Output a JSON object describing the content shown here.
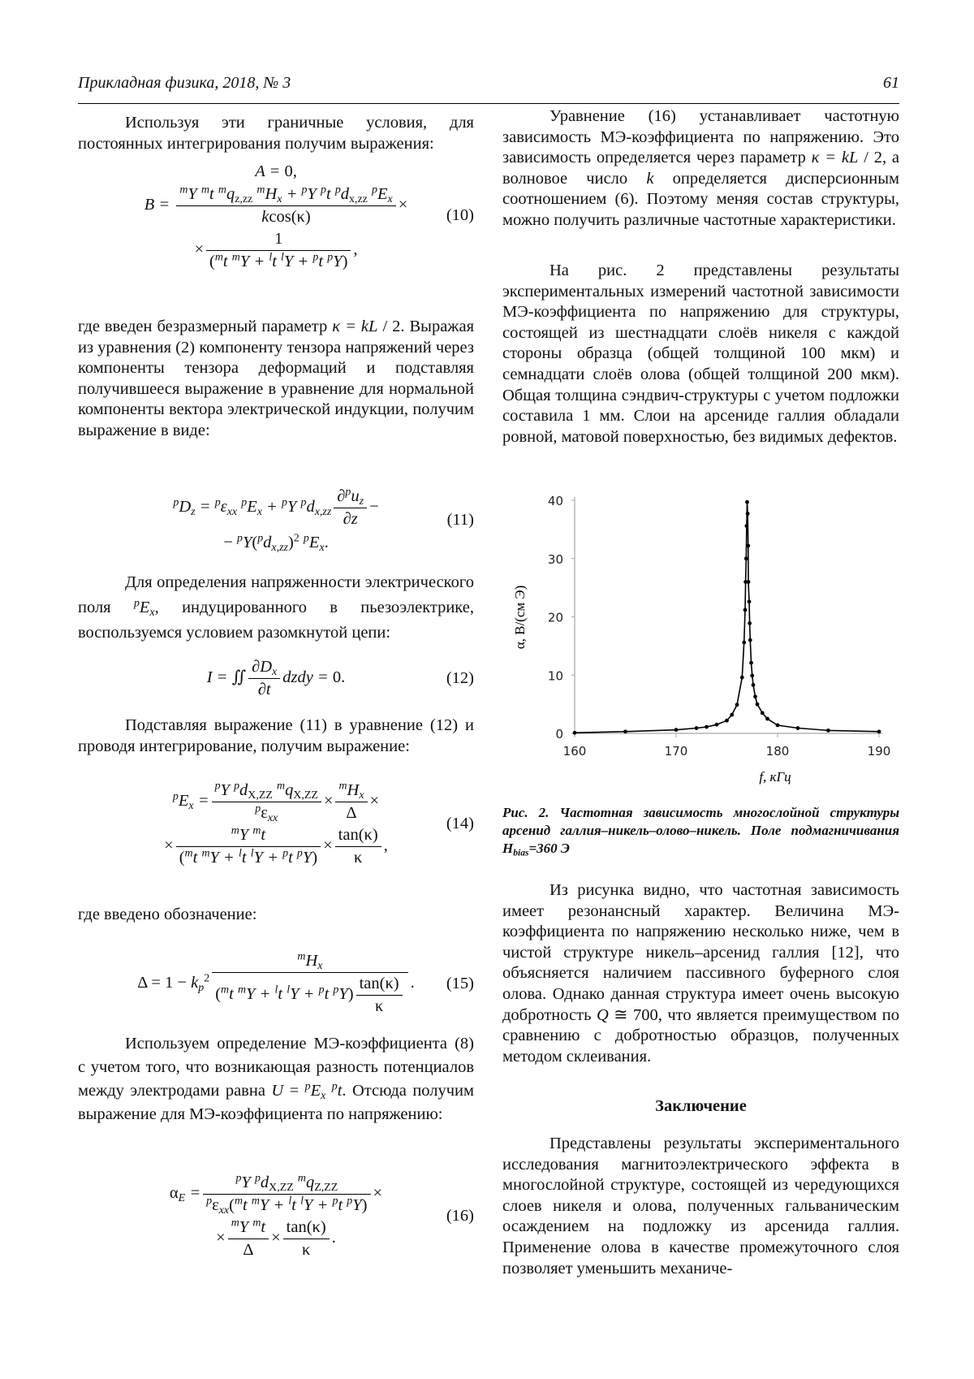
{
  "header": {
    "journal": "Прикладная физика, 2018, № 3",
    "page_number": "61"
  },
  "left": {
    "p1": "Используя эти граничные условия, для постоянных интегрирования получим выражения:",
    "eq10": {
      "label": "(10)",
      "lines": [
        [
          "A = `0`,"
        ],
        [
          "B = ",
          {
            "num": [
              "^{m}Y ^{m}t ^{m}q_{`z,zz`} ^{m}H_{x} + ^{p}Y ^{p}t ^{p}d_{`x,zz`} ^{p}E_{x}"
            ],
            "den": [
              "k`cos(κ)`"
            ]
          },
          "`×`"
        ],
        [
          "`×`",
          {
            "num": [
              "`1`"
            ],
            "den": [
              "`(`^{m}t ^{m}Y + ^{l}t ^{l}Y + ^{p}t ^{p}Y`)`"
            ]
          },
          "`,`"
        ]
      ]
    },
    "p2": "где введен безразмерный параметр *κ = kL* / 2. Выражая из уравнения (2) компоненту тензора напряжений через компоненты тензора деформаций и подставляя получившееся выражение в уравнение для нормальной компоненты вектора электрической индукции, получим выражение в виде:",
    "eq11": {
      "label": "(11)",
      "lines": [
        [
          "^{p}D_{z} = ^{p}ε_{xx} ^{p}E_{x} + ^{p}Y ^{p}d_{x,zz}",
          {
            "num": [
              "∂^{p}u_{z}"
            ],
            "den": [
              "∂z"
            ]
          },
          "`−`"
        ],
        [
          "`−` ^{p}Y`(`^{p}d_{x,zz}`)`^{`2`} ^{p}E_{x}`.`"
        ]
      ]
    },
    "p3": "Для определения напряженности электрического поля *^{p}E_{x}*, индуцированного в пьезоэлектрике, воспользуемся условием разомкнутой цепи:",
    "eq12": {
      "label": "(12)",
      "lines": [
        [
          "I = `∬`",
          {
            "num": [
              "∂D_{x}"
            ],
            "den": [
              "∂t"
            ]
          },
          "dzdy = `0.`"
        ]
      ]
    },
    "p4": "Подставляя выражение (11) в уравнение (12) и проводя интегрирование, получим выражение:",
    "eq14": {
      "label": "(14)",
      "lines": [
        [
          "^{p}E_{x} =",
          {
            "num": [
              "^{p}Y ^{p}d_{`X,ZZ`} ^{m}q_{`X,ZZ`}"
            ],
            "den": [
              "^{p}`ε`_{xx}"
            ]
          },
          "`×`",
          {
            "num": [
              "^{m}H_{x}"
            ],
            "den": [
              "`Δ`"
            ]
          },
          "`×`"
        ],
        [
          "`×`",
          {
            "num": [
              "^{m}Y ^{m}t"
            ],
            "den": [
              "`(`^{m}t ^{m}Y + ^{l}t ^{l}Y + ^{p}t ^{p}Y`)`"
            ]
          },
          "`×`",
          {
            "num": [
              "`tan(κ)`"
            ],
            "den": [
              "`κ`"
            ]
          },
          "`,`"
        ]
      ]
    },
    "p5": "где введено обозначение:",
    "eq15": {
      "label": "(15)",
      "lines": [
        [
          "`Δ = 1 −` k_{p}^{`2`}",
          {
            "num": [
              "^{m}H_{x}"
            ],
            "den": [
              "`(`^{m}t ^{m}Y + ^{l}t ^{l}Y + ^{p}t ^{p}Y`)`",
              {
                "num": [
                  "`tan(κ)`"
                ],
                "den": [
                  "`κ`"
                ]
              }
            ]
          },
          "`.`"
        ]
      ]
    },
    "p6": "Используем определение МЭ-коэффициента (8) с учетом того, что возникающая разность потенциалов между электродами равна *U* = *^{p}E_{x} ^{p}t*. Отсюда получим выражение для МЭ-коэффициента по напряжению:",
    "eq16": {
      "label": "(16)",
      "lines": [
        [
          "`α`_{E} =",
          {
            "num": [
              "^{p}Y ^{p}d_{`X,ZZ`} ^{m}q_{`Z,ZZ`}"
            ],
            "den": [
              "^{p}`ε`_{xx}`(`^{m}t ^{m}Y + ^{l}t ^{l}Y + ^{p}t ^{p}Y`)`"
            ]
          },
          "`×`"
        ],
        [
          "`×`",
          {
            "num": [
              "^{m}Y ^{m}t"
            ],
            "den": [
              "`Δ`"
            ]
          },
          "`×`",
          {
            "num": [
              "`tan(κ)`"
            ],
            "den": [
              "`κ`"
            ]
          },
          "`.`"
        ]
      ]
    }
  },
  "right": {
    "p1": "Уравнение (16) устанавливает частотную зависимость МЭ-коэффициента по напряжению. Это зависимость определяется через параметр *κ = kL* / 2, а волновое число *k* определяется дисперсионным соотношением (6). Поэтому меняя состав структуры, можно получить различные частотные характеристики.",
    "p2": "На рис. 2 представлены результаты экспериментальных измерений частотной зависимости МЭ-коэффициента по напряжению для структуры, состоящей из шестнадцати слоёв никеля с каждой стороны образца (общей толщиной 100 мкм) и семнадцати слоёв олова (общей толщиной 200 мкм). Общая толщина сэндвич-структуры с учетом подложки составила 1 мм. Слои на арсениде галлия обладали ровной, матовой поверхностью, без видимых дефектов.",
    "caption": "Рис. 2. Частотная зависимость многослойной структуры арсенид галлия–никель–олово–никель. Поле подмагничивания H_{bias}=360 Э",
    "p3": "Из рисунка видно, что частотная зависимость имеет резонансный характер. Величина МЭ-коэффициента по напряжению несколько ниже, чем в чистой структуре никель–арсенид галлия [12], что объясняется наличием пассивного буферного слоя олова. Однако данная структура имеет очень высокую добротность *Q* ≅ 700, что является преимуществом по сравнению с добротностью образцов, полученных методом склеивания.",
    "heading": "Заключение",
    "p4": "Представлены результаты экспериментального исследования магнитоэлектрического эффекта в многослойной структуре, состоящей из чередующихся слоев никеля и олова, полученных гальваническим осаждением на подложку из арсенида галлия. Применение олова в качестве промежуточного слоя позволяет уменьшить механиче-"
  },
  "chart_data": {
    "type": "line",
    "xlabel": "f, кГц",
    "ylabel": "α, В/(см Э)",
    "xlim": [
      160,
      190
    ],
    "ylim": [
      0,
      40
    ],
    "xticks": [
      160,
      170,
      180,
      190
    ],
    "yticks": [
      0,
      10,
      20,
      30,
      40
    ],
    "grid": false,
    "line_color": "#000000",
    "axis_color": "#a6a6a6",
    "x": [
      160,
      165,
      170,
      172,
      173,
      174,
      175,
      175.5,
      176,
      176.5,
      176.7,
      176.8,
      176.85,
      176.9,
      176.95,
      177.0,
      177.05,
      177.1,
      177.12,
      177.2,
      177.25,
      177.3,
      177.4,
      177.5,
      177.6,
      177.8,
      178,
      178.5,
      179,
      180,
      182,
      185,
      190
    ],
    "y": [
      0.1,
      0.3,
      0.6,
      0.9,
      1.1,
      1.5,
      2.2,
      3.2,
      4.9,
      9.6,
      15.6,
      21.2,
      26,
      30,
      35.6,
      39.7,
      37.7,
      32.2,
      26,
      22.6,
      18.9,
      16,
      12.1,
      9.9,
      8.3,
      6.3,
      5,
      3.5,
      2.5,
      1.4,
      0.9,
      0.5,
      0.3
    ]
  }
}
